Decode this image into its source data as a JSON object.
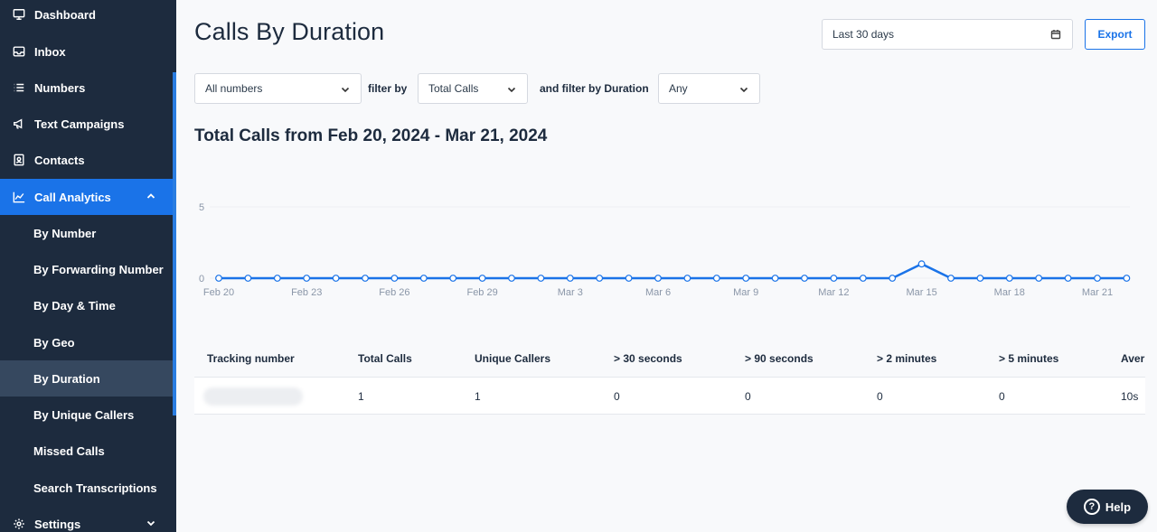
{
  "sidebar": {
    "items": [
      {
        "label": "Dashboard",
        "icon": "monitor-icon"
      },
      {
        "label": "Inbox",
        "icon": "inbox-icon"
      },
      {
        "label": "Numbers",
        "icon": "list-icon"
      },
      {
        "label": "Text Campaigns",
        "icon": "megaphone-icon"
      },
      {
        "label": "Contacts",
        "icon": "contact-card-icon"
      },
      {
        "label": "Call Analytics",
        "icon": "chart-line-icon"
      },
      {
        "label": "Settings",
        "icon": "gear-icon"
      }
    ],
    "sub_items": [
      "By Number",
      "By Forwarding Number",
      "By Day & Time",
      "By Geo",
      "By Duration",
      "By Unique Callers",
      "Missed Calls",
      "Search Transcriptions"
    ],
    "active": "Call Analytics",
    "selected_sub": "By Duration"
  },
  "header": {
    "title": "Calls By Duration",
    "date_range": "Last 30 days",
    "export_label": "Export"
  },
  "filters": {
    "numbers_value": "All numbers",
    "filter_by_label": "filter by",
    "metric_value": "Total Calls",
    "duration_label": "and filter by Duration",
    "duration_value": "Any"
  },
  "subtitle": "Total Calls from Feb 20, 2024 - Mar 21, 2024",
  "chart_data": {
    "type": "line",
    "x": [
      "Feb 20",
      "Feb 21",
      "Feb 22",
      "Feb 23",
      "Feb 24",
      "Feb 25",
      "Feb 26",
      "Feb 27",
      "Feb 28",
      "Feb 29",
      "Mar 1",
      "Mar 2",
      "Mar 3",
      "Mar 4",
      "Mar 5",
      "Mar 6",
      "Mar 7",
      "Mar 8",
      "Mar 9",
      "Mar 10",
      "Mar 11",
      "Mar 12",
      "Mar 13",
      "Mar 14",
      "Mar 15",
      "Mar 16",
      "Mar 17",
      "Mar 18",
      "Mar 19",
      "Mar 20",
      "Mar 21",
      "Mar 22"
    ],
    "tick_labels": [
      "Feb 20",
      "Feb 23",
      "Feb 26",
      "Feb 29",
      "Mar 3",
      "Mar 6",
      "Mar 9",
      "Mar 12",
      "Mar 15",
      "Mar 18",
      "Mar 21"
    ],
    "series": [
      {
        "values": [
          0,
          0,
          0,
          0,
          0,
          0,
          0,
          0,
          0,
          0,
          0,
          0,
          0,
          0,
          0,
          0,
          0,
          0,
          0,
          0,
          0,
          0,
          0,
          0,
          1,
          0,
          0,
          0,
          0,
          0,
          0,
          0
        ]
      }
    ],
    "ylim": [
      0,
      5
    ],
    "yticks": [
      "0",
      "5"
    ],
    "line_color": "#1a73e8",
    "grid": true
  },
  "table": {
    "headers": [
      "Tracking number",
      "Total Calls",
      "Unique Callers",
      "> 30 seconds",
      "> 90 seconds",
      "> 2 minutes",
      "> 5 minutes",
      "Aver"
    ],
    "rows": [
      [
        "",
        "1",
        "1",
        "0",
        "0",
        "0",
        "0",
        "10s"
      ]
    ]
  },
  "help_label": "Help"
}
